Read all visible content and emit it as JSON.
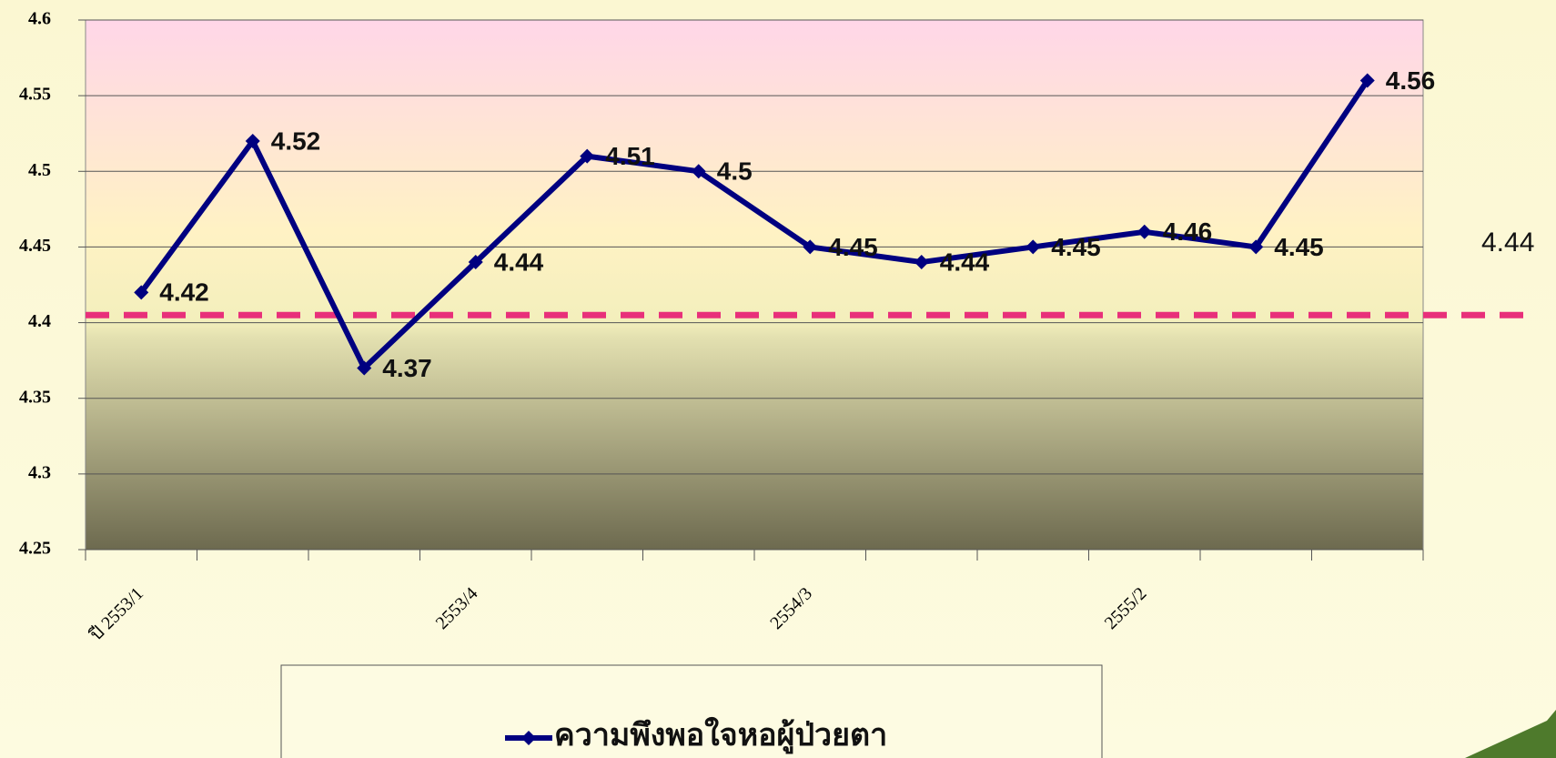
{
  "chart_data": {
    "type": "line",
    "categories": [
      "ปี 2553/1",
      null,
      null,
      "2553/4",
      null,
      null,
      "2554/3",
      null,
      null,
      "2555/2",
      null,
      null
    ],
    "series": [
      {
        "name": "ความพึงพอใจหอผู้ป่วยตา",
        "color": "#000080",
        "values": [
          4.42,
          4.52,
          4.37,
          4.44,
          4.51,
          4.5,
          4.45,
          4.44,
          4.45,
          4.46,
          4.45,
          4.56
        ]
      }
    ],
    "ylim": [
      4.25,
      4.6
    ],
    "yticks": [
      4.25,
      4.3,
      4.35,
      4.4,
      4.45,
      4.5,
      4.55,
      4.6
    ],
    "grid": true,
    "reference_line": {
      "value": 4.405,
      "color": "#e8307a"
    },
    "annotations": [
      "4.44"
    ],
    "legend": "bottom"
  }
}
